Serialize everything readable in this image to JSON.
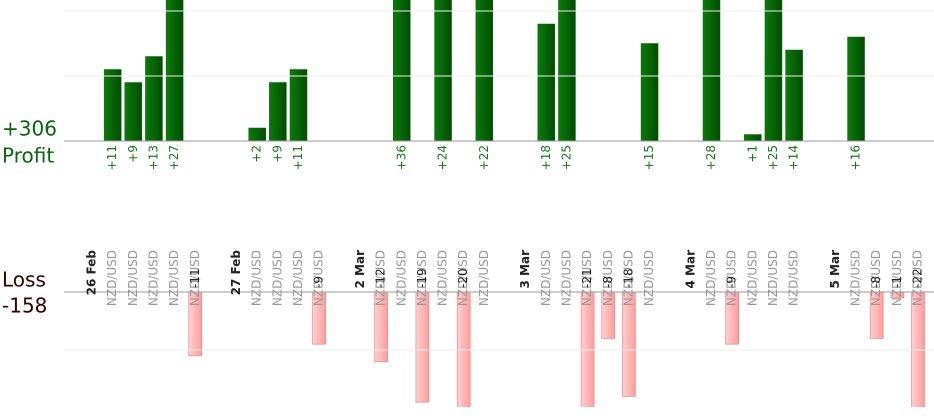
{
  "chart_data": {
    "type": "bar",
    "profit_total": "+306",
    "profit_label": "Profit",
    "loss_label": "Loss",
    "loss_total": "-158",
    "categories": [
      "26 Feb",
      "NZD/USD",
      "NZD/USD",
      "NZD/USD",
      "NZD/USD",
      "NZD/USD",
      null,
      "27 Feb",
      "NZD/USD",
      "NZD/USD",
      "NZD/USD",
      "NZD/USD",
      null,
      "2 Mar",
      "NZD/USD",
      "NZD/USD",
      "NZD/USD",
      "NZD/USD",
      "NZD/USD",
      "NZD/USD",
      null,
      "3 Mar",
      "NZD/USD",
      "NZD/USD",
      "NZD/USD",
      "NZD/USD",
      "NZD/USD",
      "NZD/USD",
      null,
      "4 Mar",
      "NZD/USD",
      "NZD/USD",
      "NZD/USD",
      "NZD/USD",
      "NZD/USD",
      null,
      "5 Mar",
      "NZD/USD",
      "NZD/USD",
      "NZD/USD",
      "NZD/USD"
    ],
    "values": [
      null,
      11,
      9,
      13,
      27,
      -11,
      null,
      null,
      2,
      9,
      11,
      -9,
      null,
      null,
      -12,
      36,
      -19,
      24,
      -20,
      22,
      null,
      null,
      18,
      25,
      -21,
      -8,
      -18,
      15,
      null,
      null,
      28,
      -9,
      1,
      25,
      14,
      null,
      null,
      16,
      -8,
      -1,
      -22
    ],
    "value_labels": [
      null,
      "+11",
      "+9",
      "+13",
      "+27",
      "-11",
      null,
      null,
      "+2",
      "+9",
      "+11",
      "-9",
      null,
      null,
      "-12",
      "+36",
      "-19",
      "+24",
      "-20",
      "+22",
      null,
      null,
      "+18",
      "+25",
      "-21",
      "-8",
      "-18",
      "+15",
      null,
      null,
      "+28",
      "-9",
      "+1",
      "+25",
      "+14",
      null,
      null,
      "+16",
      "-8",
      "-1",
      "-22"
    ],
    "profit_color": "#0a640a",
    "loss_color": "#ffb3b3",
    "ylim": [
      0,
      20
    ],
    "yticks": [
      10,
      20
    ],
    "loss_ylim": [
      0,
      -20
    ],
    "loss_yticks": [
      -10
    ],
    "grid": true
  }
}
